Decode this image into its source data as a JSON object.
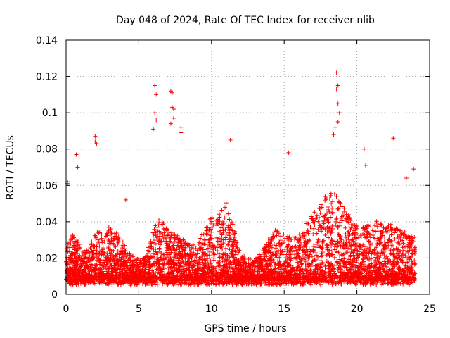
{
  "chart_data": {
    "type": "scatter",
    "title": "Day 048 of 2024, Rate Of TEC Index for receiver nlib",
    "xlabel": "GPS time / hours",
    "ylabel": "ROTI / TECUs",
    "xlim": [
      0,
      25
    ],
    "ylim": [
      0,
      0.14
    ],
    "xticks": [
      0,
      5,
      10,
      15,
      20,
      25
    ],
    "xtick_labels": [
      "0",
      "5",
      "10",
      "15",
      "20",
      "25"
    ],
    "yticks": [
      0,
      0.02,
      0.04,
      0.06,
      0.08,
      0.1,
      0.12,
      0.14
    ],
    "ytick_labels": [
      "0",
      "0.02",
      "0.04",
      "0.06",
      "0.08",
      "0.1",
      "0.12",
      "0.14"
    ],
    "grid": true,
    "marker": "+",
    "marker_color": "#ff0000",
    "series": [
      {
        "name": "ROTI",
        "x_range": [
          0,
          24
        ],
        "profile": [
          [
            0.0,
            0.028
          ],
          [
            0.5,
            0.03
          ],
          [
            1.0,
            0.024
          ],
          [
            1.5,
            0.022
          ],
          [
            2.0,
            0.03
          ],
          [
            2.5,
            0.032
          ],
          [
            3.0,
            0.034
          ],
          [
            3.5,
            0.03
          ],
          [
            4.0,
            0.025
          ],
          [
            4.5,
            0.02
          ],
          [
            5.0,
            0.018
          ],
          [
            5.5,
            0.02
          ],
          [
            6.0,
            0.032
          ],
          [
            6.5,
            0.038
          ],
          [
            7.0,
            0.032
          ],
          [
            7.5,
            0.03
          ],
          [
            8.0,
            0.028
          ],
          [
            8.5,
            0.025
          ],
          [
            9.0,
            0.026
          ],
          [
            9.5,
            0.032
          ],
          [
            10.0,
            0.038
          ],
          [
            10.5,
            0.04
          ],
          [
            11.0,
            0.045
          ],
          [
            11.5,
            0.035
          ],
          [
            12.0,
            0.02
          ],
          [
            12.5,
            0.018
          ],
          [
            13.0,
            0.018
          ],
          [
            13.5,
            0.022
          ],
          [
            14.0,
            0.03
          ],
          [
            14.5,
            0.032
          ],
          [
            15.0,
            0.03
          ],
          [
            15.5,
            0.028
          ],
          [
            16.0,
            0.03
          ],
          [
            16.5,
            0.035
          ],
          [
            17.0,
            0.04
          ],
          [
            17.5,
            0.045
          ],
          [
            18.0,
            0.05
          ],
          [
            18.5,
            0.052
          ],
          [
            19.0,
            0.045
          ],
          [
            19.5,
            0.038
          ],
          [
            20.0,
            0.034
          ],
          [
            20.5,
            0.034
          ],
          [
            21.0,
            0.035
          ],
          [
            21.5,
            0.036
          ],
          [
            22.0,
            0.036
          ],
          [
            22.5,
            0.034
          ],
          [
            23.0,
            0.032
          ],
          [
            23.5,
            0.03
          ],
          [
            24.0,
            0.028
          ]
        ],
        "outliers": [
          [
            0.1,
            0.062
          ],
          [
            0.1,
            0.061
          ],
          [
            0.7,
            0.077
          ],
          [
            0.8,
            0.07
          ],
          [
            2.0,
            0.087
          ],
          [
            2.0,
            0.084
          ],
          [
            2.1,
            0.083
          ],
          [
            4.1,
            0.052
          ],
          [
            6.1,
            0.115
          ],
          [
            6.2,
            0.11
          ],
          [
            6.1,
            0.1
          ],
          [
            6.2,
            0.096
          ],
          [
            6.0,
            0.091
          ],
          [
            7.2,
            0.112
          ],
          [
            7.3,
            0.111
          ],
          [
            7.3,
            0.103
          ],
          [
            7.4,
            0.102
          ],
          [
            7.4,
            0.097
          ],
          [
            7.2,
            0.094
          ],
          [
            7.9,
            0.092
          ],
          [
            7.9,
            0.089
          ],
          [
            11.3,
            0.085
          ],
          [
            15.3,
            0.078
          ],
          [
            18.6,
            0.122
          ],
          [
            18.7,
            0.115
          ],
          [
            18.6,
            0.113
          ],
          [
            18.7,
            0.105
          ],
          [
            18.8,
            0.1
          ],
          [
            18.7,
            0.095
          ],
          [
            18.5,
            0.092
          ],
          [
            18.4,
            0.088
          ],
          [
            20.5,
            0.08
          ],
          [
            20.6,
            0.071
          ],
          [
            22.5,
            0.086
          ],
          [
            23.9,
            0.069
          ],
          [
            23.4,
            0.064
          ]
        ]
      }
    ]
  }
}
